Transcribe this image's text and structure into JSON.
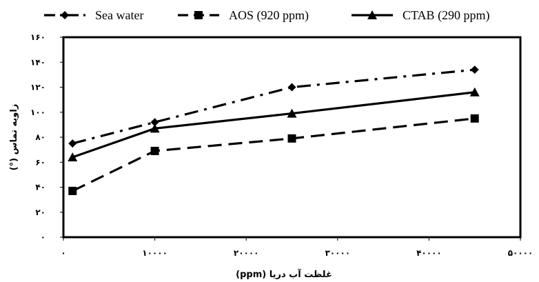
{
  "chart_data": {
    "type": "line",
    "xlabel": "غلظت آب دریا  (ppm)",
    "ylabel": "زاویه تماس (°)",
    "xlim": [
      0,
      50000
    ],
    "ylim": [
      0,
      160
    ],
    "x_ticks": [
      0,
      10000,
      20000,
      30000,
      40000,
      50000
    ],
    "y_ticks": [
      0,
      20,
      40,
      60,
      80,
      100,
      120,
      140,
      160
    ],
    "x_tick_labels": [
      "۰",
      "۱۰۰۰۰",
      "۲۰۰۰۰",
      "۳۰۰۰۰",
      "۴۰۰۰۰",
      "۵۰۰۰۰"
    ],
    "y_tick_labels": [
      "۰",
      "۲۰",
      "۴۰",
      "۶۰",
      "۸۰",
      "۱۰۰",
      "۱۲۰",
      "۱۴۰",
      "۱۶۰"
    ],
    "grid": false,
    "legend_position": "top",
    "series": [
      {
        "name": "Sea water",
        "marker": "diamond",
        "line_style": "dash-dot",
        "x": [
          1000,
          10000,
          25000,
          45000
        ],
        "y": [
          75,
          92,
          120,
          134
        ]
      },
      {
        "name": "AOS (920 ppm)",
        "marker": "square",
        "line_style": "dashed",
        "x": [
          1000,
          10000,
          25000,
          45000
        ],
        "y": [
          37,
          69,
          79,
          95
        ]
      },
      {
        "name": "CTAB (290 ppm)",
        "marker": "triangle",
        "line_style": "solid",
        "x": [
          1000,
          10000,
          25000,
          45000
        ],
        "y": [
          64,
          87,
          99,
          116
        ]
      }
    ],
    "colors": {
      "line": "#000000",
      "plot_border": "#000000",
      "background": "#ffffff"
    }
  }
}
